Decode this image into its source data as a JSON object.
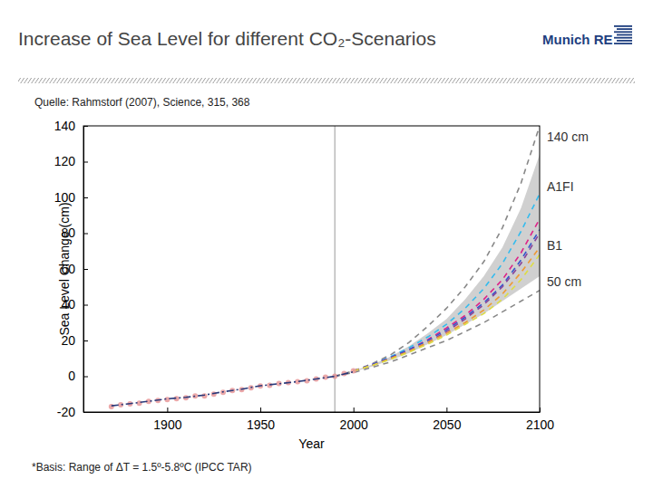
{
  "page": {
    "title": "Increase of Sea Level for different CO₂-Scenarios",
    "logo": "Munich RE",
    "source": "Quelle: Rahmstorf (2007), Science, 315, 368",
    "footnote": "*Basis: Range of ΔT = 1.5º-5.8ºC (IPCC TAR)"
  },
  "chart_data": {
    "type": "line",
    "x_label": "Year",
    "y_label": "Sea Level Change (cm)",
    "xlim": [
      1855,
      2100
    ],
    "xticks": [
      1900,
      1950,
      2000,
      2050,
      2100
    ],
    "ylim": [
      -20,
      140
    ],
    "yticks": [
      -20,
      0,
      20,
      40,
      60,
      80,
      100,
      120,
      140
    ],
    "grid": false,
    "vlines": [
      1990
    ],
    "series": [
      {
        "type": "area",
        "color": "#c8c8c8",
        "x": [
          1990,
          2000,
          2010,
          2020,
          2030,
          2040,
          2050,
          2060,
          2070,
          2080,
          2090,
          2100
        ],
        "values": [
          0,
          3,
          6.5,
          11,
          17,
          24,
          32,
          43,
          56,
          72,
          94,
          124
        ],
        "lower": [
          0,
          2.5,
          5.5,
          9,
          13,
          18,
          23,
          29,
          35,
          42,
          49,
          56
        ]
      },
      {
        "type": "line",
        "line_style": "dashed",
        "color": "#888888",
        "x": [
          1990,
          2000,
          2010,
          2020,
          2030,
          2040,
          2050,
          2060,
          2070,
          2080,
          2090,
          2100
        ],
        "values": [
          0,
          3,
          7,
          12,
          19,
          28,
          38,
          50,
          64,
          83,
          108,
          140
        ]
      },
      {
        "type": "line",
        "line_style": "dashed",
        "color": "#888888",
        "x": [
          1990,
          2000,
          2010,
          2020,
          2030,
          2040,
          2050,
          2060,
          2070,
          2080,
          2090,
          2100
        ],
        "values": [
          0,
          2,
          5,
          8,
          12,
          16,
          20,
          25,
          30,
          36,
          42,
          48
        ]
      },
      {
        "type": "line",
        "line_style": "dashed",
        "color": "#33bbee",
        "x": [
          2000,
          2010,
          2020,
          2030,
          2040,
          2050,
          2060,
          2070,
          2080,
          2090,
          2100
        ],
        "values": [
          3,
          6.5,
          11,
          16,
          22,
          29,
          38,
          49,
          63,
          81,
          102
        ]
      },
      {
        "type": "line",
        "line_style": "dashed",
        "color": "#dd2288",
        "x": [
          2000,
          2010,
          2020,
          2030,
          2040,
          2050,
          2060,
          2070,
          2080,
          2090,
          2100
        ],
        "values": [
          3,
          6.5,
          10.5,
          15,
          20.5,
          27,
          34,
          43,
          54,
          69,
          88
        ]
      },
      {
        "type": "line",
        "line_style": "dashed",
        "color": "#3355cc",
        "x": [
          2000,
          2010,
          2020,
          2030,
          2040,
          2050,
          2060,
          2070,
          2080,
          2090,
          2100
        ],
        "values": [
          3,
          6.5,
          10.5,
          15,
          20,
          26,
          33,
          41,
          51,
          65,
          82
        ]
      },
      {
        "type": "line",
        "line_style": "dashed",
        "color": "#884499",
        "x": [
          2000,
          2010,
          2020,
          2030,
          2040,
          2050,
          2060,
          2070,
          2080,
          2090,
          2100
        ],
        "values": [
          3,
          6,
          10,
          14,
          19,
          25,
          32,
          40,
          50,
          63,
          80
        ]
      },
      {
        "type": "line",
        "line_style": "dashed",
        "color": "#ee9933",
        "x": [
          2000,
          2010,
          2020,
          2030,
          2040,
          2050,
          2060,
          2070,
          2080,
          2090,
          2100
        ],
        "values": [
          3,
          6,
          10,
          14,
          19,
          24,
          30,
          37,
          46,
          58,
          72
        ]
      },
      {
        "type": "line",
        "line_style": "dashed",
        "color": "#dddd44",
        "x": [
          2000,
          2010,
          2020,
          2030,
          2040,
          2050,
          2060,
          2070,
          2080,
          2090,
          2100
        ],
        "values": [
          3,
          6,
          9.5,
          13.5,
          18,
          23,
          29,
          35,
          43,
          54,
          68
        ]
      },
      {
        "type": "scatter",
        "marker": "circle",
        "color": "#e8999a",
        "x": [
          1870,
          1875,
          1880,
          1885,
          1890,
          1895,
          1900,
          1905,
          1910,
          1915,
          1920,
          1925,
          1930,
          1935,
          1940,
          1945,
          1950,
          1955,
          1960,
          1965,
          1970,
          1975,
          1980,
          1985,
          1990,
          1995,
          2000
        ],
        "values": [
          -17,
          -16,
          -15.5,
          -15,
          -14,
          -13.5,
          -13,
          -12.5,
          -12,
          -11,
          -11,
          -10,
          -9,
          -8,
          -7.5,
          -6.5,
          -5.5,
          -5,
          -4,
          -3.5,
          -3,
          -2.5,
          -1.5,
          -0.5,
          0,
          1.5,
          3
        ]
      },
      {
        "type": "line",
        "line_style": "dashdot",
        "color": "#2a3a7a",
        "x": [
          1870,
          1880,
          1890,
          1900,
          1910,
          1920,
          1930,
          1940,
          1950,
          1960,
          1970,
          1980,
          1990,
          2000
        ],
        "values": [
          -16.5,
          -15.3,
          -14,
          -12.6,
          -11.8,
          -10.5,
          -8.7,
          -7.2,
          -5.3,
          -4.2,
          -3,
          -1.5,
          0,
          2.5
        ]
      }
    ],
    "annotations": [
      {
        "text": "140 cm",
        "x": 2100,
        "y": 134
      },
      {
        "text": "A1FI",
        "x": 2100,
        "y": 106
      },
      {
        "text": "B1",
        "x": 2100,
        "y": 73
      },
      {
        "text": "50 cm",
        "x": 2100,
        "y": 53
      }
    ]
  }
}
